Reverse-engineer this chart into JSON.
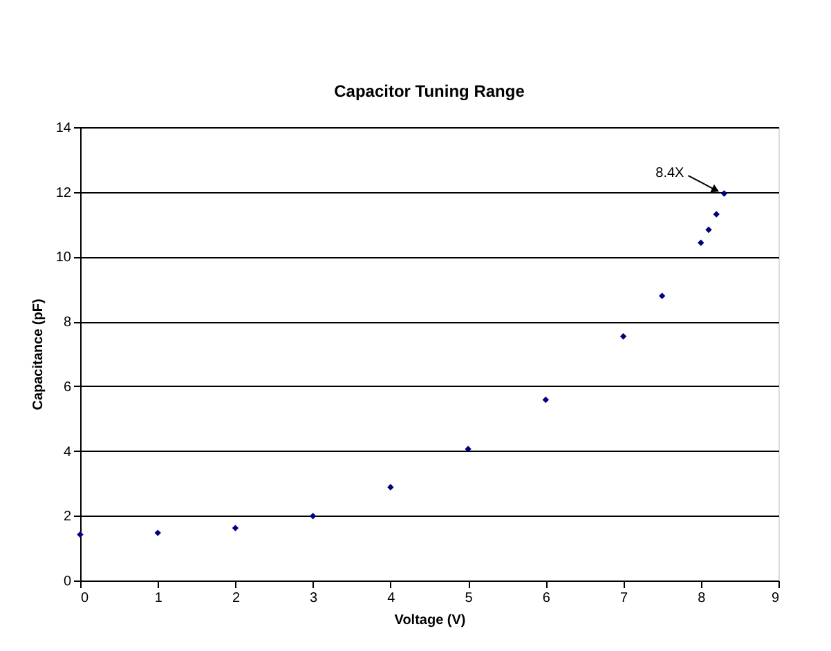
{
  "chart_data": {
    "type": "scatter",
    "title": "Capacitor Tuning Range",
    "xlabel": "Voltage (V)",
    "ylabel": "Capacitance (pF)",
    "x": [
      0,
      1,
      2,
      3,
      4,
      5,
      6,
      7,
      7.5,
      8,
      8.1,
      8.2,
      8.3
    ],
    "series": [
      {
        "color": "#000080",
        "values": [
          1.42,
          1.47,
          1.62,
          1.99,
          2.88,
          4.06,
          5.58,
          7.54,
          8.79,
          10.43,
          10.83,
          11.31,
          11.95
        ]
      }
    ],
    "xlim": [
      0,
      9
    ],
    "xticks": [
      0,
      1,
      2,
      3,
      4,
      5,
      6,
      7,
      8,
      9
    ],
    "ylim": [
      0,
      14
    ],
    "yticks": [
      0,
      2,
      4,
      6,
      8,
      10,
      12,
      14
    ],
    "grid": "y",
    "legend": false,
    "marker": "diamond",
    "annotations": [
      {
        "text": "8.4X",
        "x": 8.3,
        "y": 11.95
      }
    ]
  }
}
